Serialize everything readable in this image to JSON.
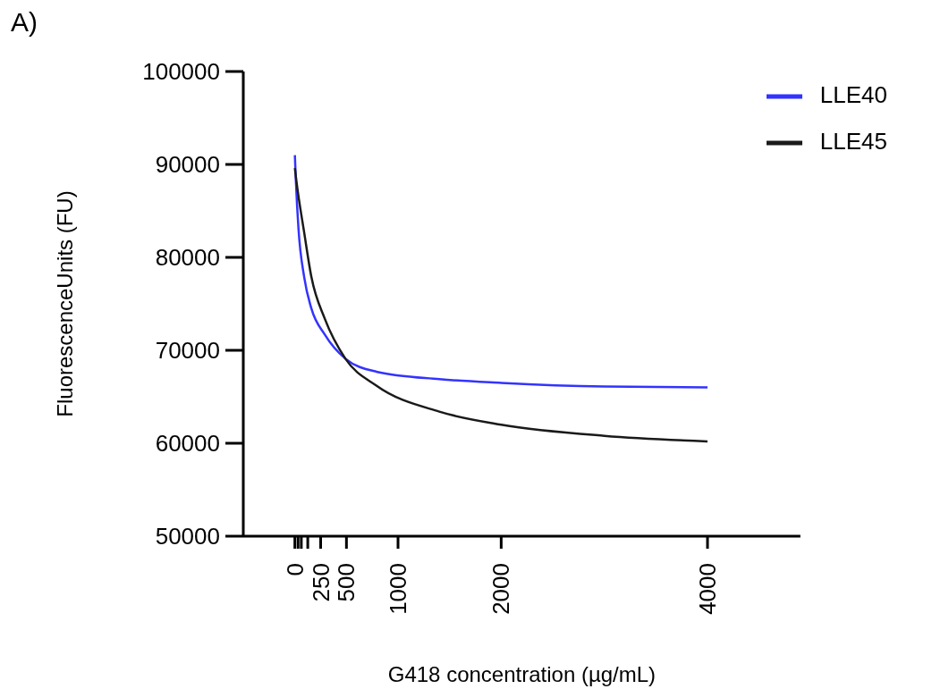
{
  "chart_data": {
    "type": "line",
    "annotations": [
      "A)"
    ],
    "xlabel": "G418 concentration (µg/mL)",
    "ylabel": "FluorescenceUnits (FU)",
    "xlim": [
      -500,
      4900
    ],
    "xticks": [
      0,
      {
        "value": 31.25,
        "label": null
      },
      {
        "value": 62.5,
        "label": null
      },
      {
        "value": 125,
        "label": null
      },
      250,
      500,
      1000,
      2000,
      4000
    ],
    "ylim": [
      50000,
      100000
    ],
    "yticks": [
      50000,
      60000,
      70000,
      80000,
      90000,
      100000
    ],
    "grid": false,
    "legend": "top right",
    "marker": "none",
    "line_style": "solid",
    "series": [
      {
        "name": "LLE40",
        "color": "#3333ff",
        "x": [
          0,
          10,
          35,
          90,
          160,
          290,
          490,
          790,
          1400,
          2000,
          3000,
          4000
        ],
        "values": [
          91000,
          88200,
          83100,
          77900,
          74500,
          71700,
          69100,
          67700,
          66900,
          66500,
          66100,
          66000
        ]
      },
      {
        "name": "LLE45",
        "color": "#1a1a1a",
        "x": [
          0,
          15,
          90,
          160,
          290,
          490,
          790,
          1400,
          2000,
          3000,
          4000
        ],
        "values": [
          89600,
          88200,
          82700,
          77900,
          73400,
          69100,
          66200,
          63400,
          62000,
          60800,
          60200
        ]
      }
    ]
  }
}
